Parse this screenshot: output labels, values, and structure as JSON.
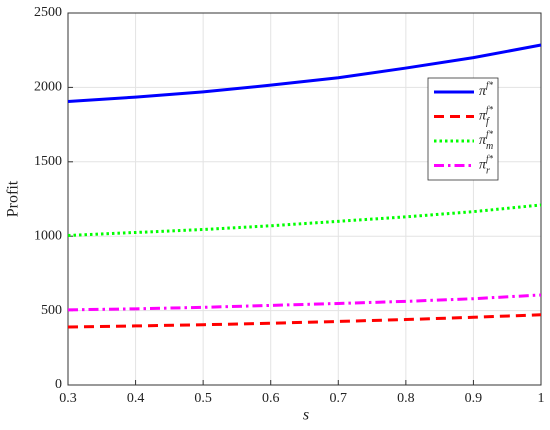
{
  "chart_data": {
    "type": "line",
    "xlabel": "s",
    "ylabel": "Profit",
    "x": [
      0.3,
      0.4,
      0.5,
      0.6,
      0.7,
      0.8,
      0.9,
      1.0
    ],
    "series": [
      {
        "name": "π^f*",
        "color": "#0000ff",
        "linestyle": "solid",
        "values": [
          1905,
          1935,
          1970,
          2015,
          2065,
          2130,
          2200,
          2285
        ]
      },
      {
        "name": "π_f^f*",
        "color": "#ff0000",
        "linestyle": "dashed",
        "values": [
          390,
          397,
          405,
          415,
          427,
          440,
          455,
          472
        ]
      },
      {
        "name": "π_m^f*",
        "color": "#00ff00",
        "linestyle": "dotted",
        "values": [
          1005,
          1025,
          1045,
          1070,
          1100,
          1130,
          1165,
          1210
        ]
      },
      {
        "name": "π_r^f*",
        "color": "#ff00ff",
        "linestyle": "dashdot",
        "values": [
          505,
          512,
          522,
          535,
          548,
          562,
          580,
          605
        ]
      }
    ],
    "xlim": [
      0.3,
      1
    ],
    "xticks": [
      0.3,
      0.4,
      0.5,
      0.6,
      0.7,
      0.8,
      0.9,
      1
    ],
    "ylim": [
      0,
      2500
    ],
    "yticks": [
      0,
      500,
      1000,
      1500,
      2000,
      2500
    ],
    "grid": true,
    "legend": "upper right"
  }
}
